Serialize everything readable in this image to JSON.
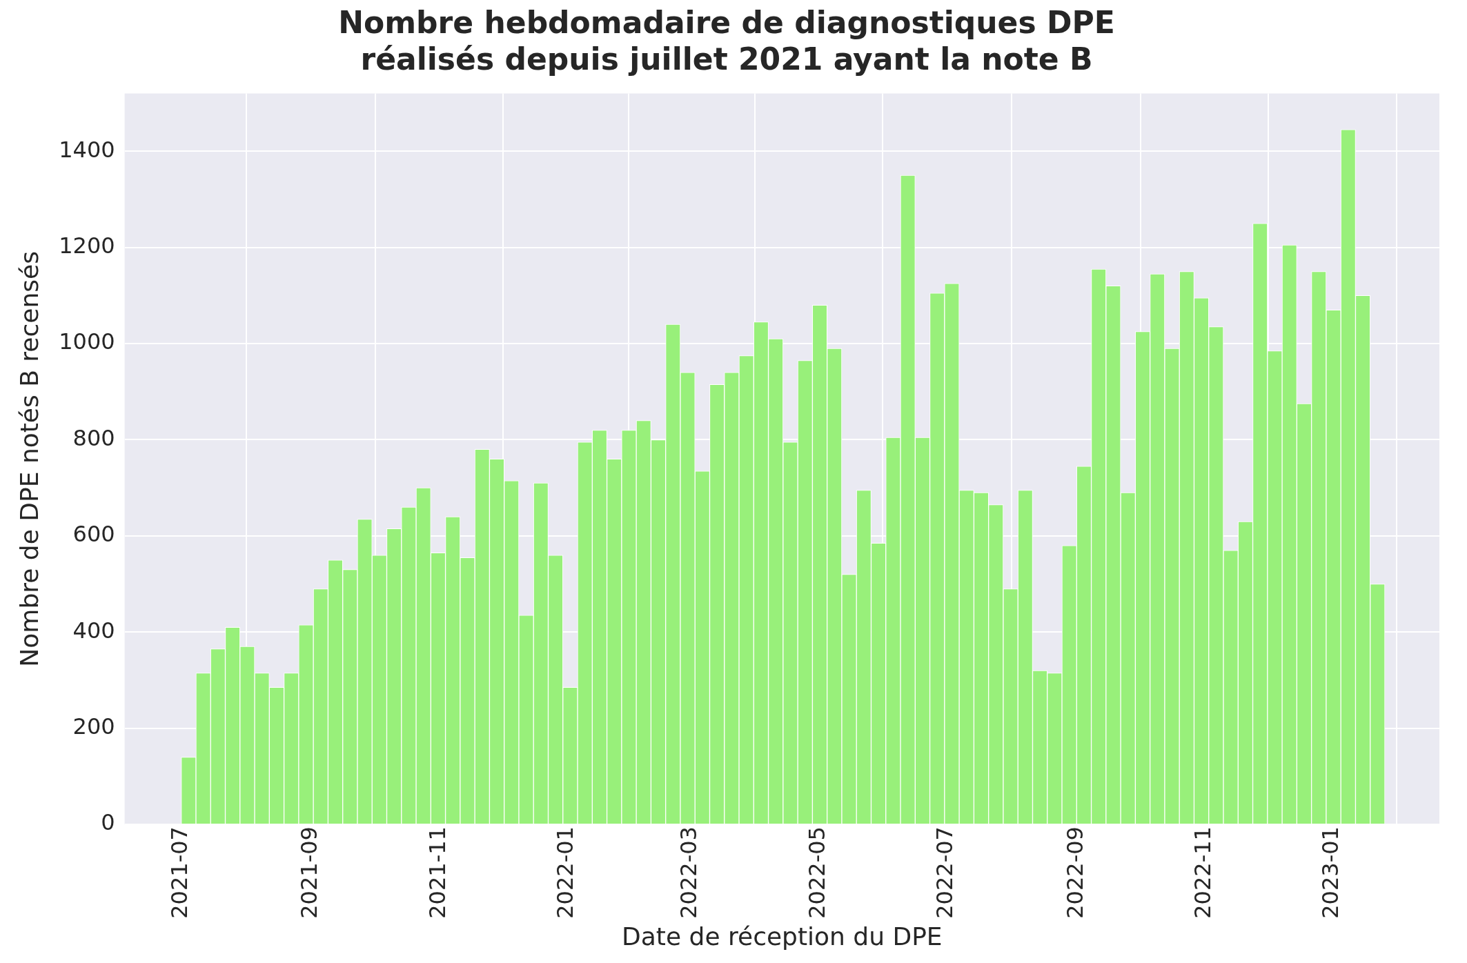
{
  "chart_data": {
    "type": "histogram",
    "title": "Nombre hebdomadaire de diagnostiques DPE\nréalisés depuis juillet 2021 ayant la note B",
    "xlabel": "Date de réception du DPE",
    "ylabel": "Nombre de DPE notés B recensés",
    "bins": [
      "2021-07-01",
      "2021-07-08",
      "2021-07-15",
      "2021-07-22",
      "2021-07-29",
      "2021-08-05",
      "2021-08-12",
      "2021-08-19",
      "2021-08-26",
      "2021-09-02",
      "2021-09-09",
      "2021-09-16",
      "2021-09-23",
      "2021-09-30",
      "2021-10-07",
      "2021-10-14",
      "2021-10-21",
      "2021-10-28",
      "2021-11-04",
      "2021-11-11",
      "2021-11-18",
      "2021-11-25",
      "2021-12-02",
      "2021-12-09",
      "2021-12-16",
      "2021-12-23",
      "2021-12-30",
      "2022-01-06",
      "2022-01-13",
      "2022-01-20",
      "2022-01-27",
      "2022-02-03",
      "2022-02-10",
      "2022-02-17",
      "2022-02-24",
      "2022-03-03",
      "2022-03-10",
      "2022-03-17",
      "2022-03-24",
      "2022-03-31",
      "2022-04-07",
      "2022-04-14",
      "2022-04-21",
      "2022-04-28",
      "2022-05-05",
      "2022-05-12",
      "2022-05-19",
      "2022-05-26",
      "2022-06-02",
      "2022-06-09",
      "2022-06-16",
      "2022-06-23",
      "2022-06-30",
      "2022-07-07",
      "2022-07-14",
      "2022-07-21",
      "2022-07-28",
      "2022-08-04",
      "2022-08-11",
      "2022-08-18",
      "2022-08-25",
      "2022-09-01",
      "2022-09-08",
      "2022-09-15",
      "2022-09-22",
      "2022-09-29",
      "2022-10-06",
      "2022-10-13",
      "2022-10-20",
      "2022-10-27",
      "2022-11-03",
      "2022-11-10",
      "2022-11-17",
      "2022-11-24",
      "2022-12-01",
      "2022-12-08",
      "2022-12-15",
      "2022-12-22",
      "2022-12-29",
      "2023-01-05",
      "2023-01-12",
      "2023-01-19",
      "2023-01-26"
    ],
    "values": [
      140,
      315,
      365,
      410,
      370,
      315,
      285,
      315,
      415,
      490,
      550,
      530,
      635,
      560,
      615,
      660,
      700,
      565,
      640,
      555,
      780,
      760,
      715,
      435,
      710,
      560,
      285,
      795,
      820,
      760,
      820,
      840,
      800,
      1040,
      940,
      735,
      915,
      940,
      975,
      1045,
      1010,
      795,
      965,
      1080,
      990,
      520,
      695,
      585,
      805,
      1350,
      805,
      1105,
      1125,
      695,
      690,
      665,
      490,
      695,
      320,
      315,
      580,
      745,
      1155,
      1120,
      690,
      1025,
      1145,
      990,
      1150,
      1095,
      1035,
      570,
      630,
      1250,
      985,
      1205,
      875,
      1150,
      1070,
      1445,
      1100,
      500
    ],
    "color": "#98f07a",
    "xlim": [
      "2021-06-04",
      "2023-02-21"
    ],
    "xticks": [
      "2021-07",
      "2021-09",
      "2021-11",
      "2022-01",
      "2022-03",
      "2022-05",
      "2022-07",
      "2022-09",
      "2022-11",
      "2023-01"
    ],
    "ylim": [
      0,
      1520
    ],
    "yticks": [
      0,
      200,
      400,
      600,
      800,
      1000,
      1200,
      1400
    ],
    "grid": true
  }
}
